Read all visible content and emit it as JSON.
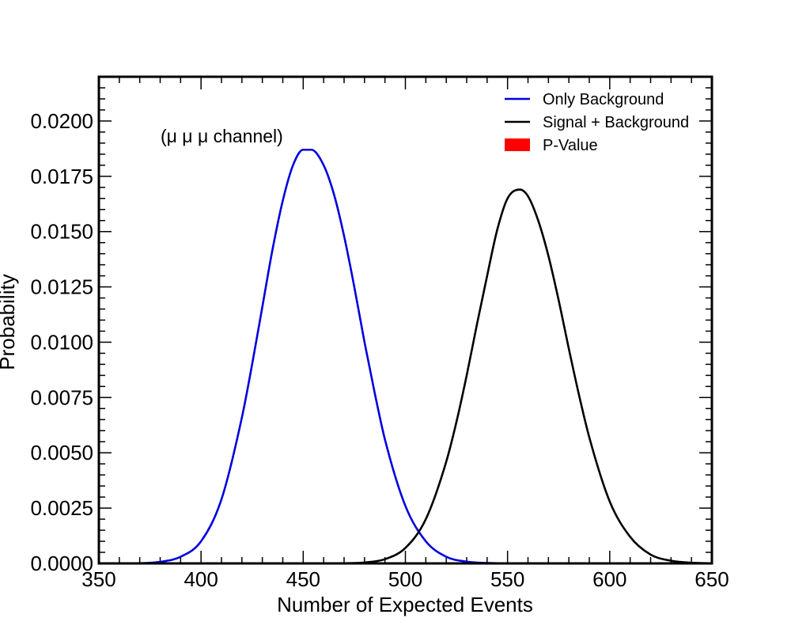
{
  "chart_data": {
    "type": "line",
    "xlabel": "Number of Expected Events",
    "ylabel": "Probability",
    "annotation": "(μ μ μ channel)",
    "xlim": [
      350,
      650
    ],
    "ylim": [
      0,
      0.022
    ],
    "x_ticks": [
      350,
      400,
      450,
      500,
      550,
      600,
      650
    ],
    "x_tick_labels": [
      "350",
      "400",
      "450",
      "500",
      "550",
      "600",
      "650"
    ],
    "y_ticks": [
      0,
      0.0025,
      0.005,
      0.0075,
      0.01,
      0.0125,
      0.015,
      0.0175,
      0.02
    ],
    "y_tick_labels": [
      "0.0000",
      "0.0025",
      "0.0050",
      "0.0075",
      "0.0100",
      "0.0125",
      "0.0150",
      "0.0175",
      "0.0200"
    ],
    "legend_position": "top-right",
    "grid": false,
    "series": [
      {
        "name": "Only Background",
        "color": "#0000dd",
        "x": [
          350,
          360,
          370,
          380,
          390,
          400,
          410,
          420,
          425,
          430,
          435,
          440,
          445,
          450,
          454,
          460,
          465,
          470,
          475,
          480,
          485,
          490,
          500,
          510,
          520,
          530,
          540,
          550,
          560,
          650
        ],
        "y": [
          0,
          1e-06,
          1e-05,
          7e-05,
          0.0003,
          0.001,
          0.0029,
          0.0066,
          0.009,
          0.0116,
          0.0142,
          0.0164,
          0.018,
          0.0187,
          0.0187,
          0.018,
          0.0167,
          0.0148,
          0.0125,
          0.01,
          0.0077,
          0.0056,
          0.0026,
          0.001,
          0.0003,
          8e-05,
          2e-05,
          3e-06,
          0,
          0
        ]
      },
      {
        "name": "Signal + Background",
        "color": "#000000",
        "x": [
          350,
          450,
          460,
          470,
          480,
          490,
          500,
          510,
          520,
          525,
          530,
          535,
          540,
          545,
          550,
          556,
          560,
          565,
          570,
          575,
          580,
          585,
          590,
          600,
          610,
          620,
          630,
          640,
          650
        ],
        "y": [
          0,
          0,
          1e-06,
          8e-06,
          4e-05,
          0.00019,
          0.0007,
          0.002,
          0.0046,
          0.0064,
          0.0085,
          0.0108,
          0.013,
          0.0151,
          0.0165,
          0.0169,
          0.0166,
          0.0155,
          0.0139,
          0.0119,
          0.0097,
          0.0076,
          0.0057,
          0.0028,
          0.0012,
          0.0004,
          0.00012,
          3e-05,
          6e-06
        ]
      },
      {
        "name": "P-Value",
        "color": "#ff0000",
        "type": "area",
        "x": [],
        "y": []
      }
    ]
  }
}
